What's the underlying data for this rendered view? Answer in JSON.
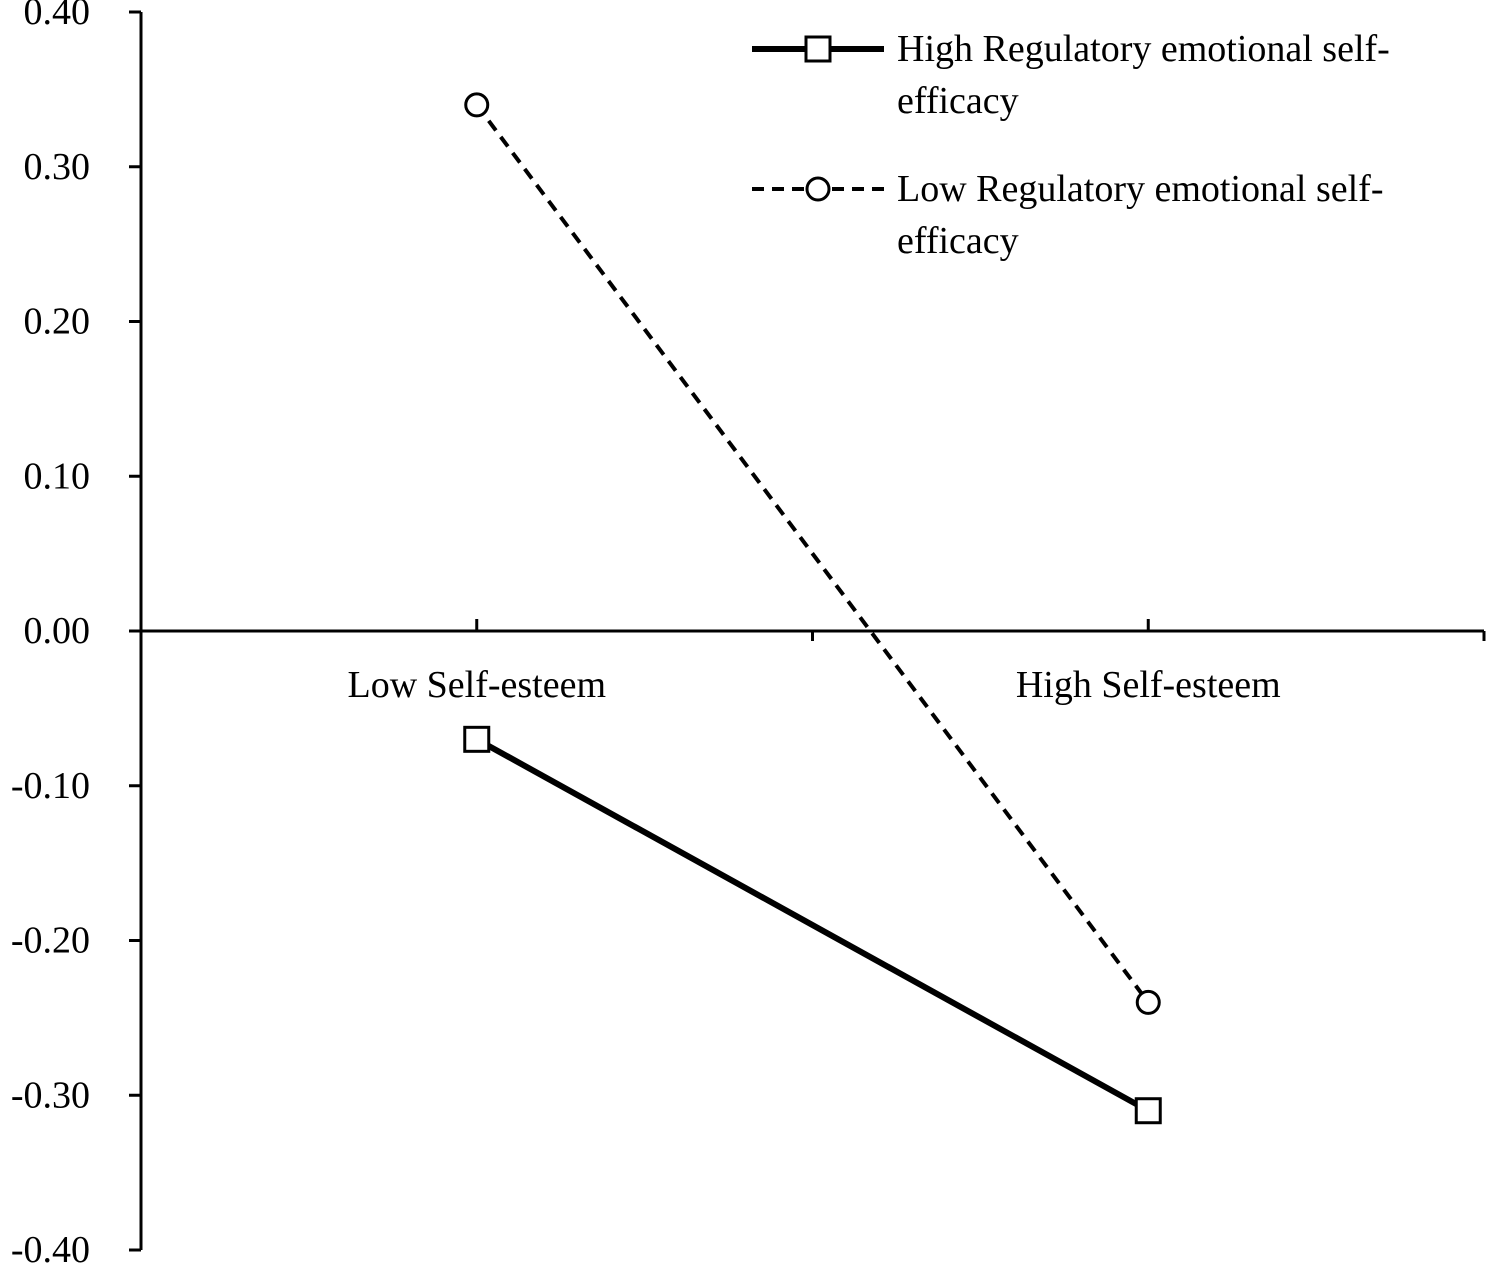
{
  "chart_data": {
    "type": "line",
    "categories": [
      "Low Self-esteem",
      "High Self-esteem"
    ],
    "ylim": [
      -0.4,
      0.4
    ],
    "yticks": [
      "0.40",
      "0.30",
      "0.20",
      "0.10",
      "0.00",
      "-0.10",
      "-0.20",
      "-0.30",
      "-0.40"
    ],
    "grid": false,
    "legend_position": "top-right",
    "series": [
      {
        "name_lines": [
          "High Regulatory emotional self-",
          "efficacy"
        ],
        "values": [
          -0.07,
          -0.31
        ],
        "marker": "square",
        "line_style": "solid",
        "color": "#000000"
      },
      {
        "name_lines": [
          "Low Regulatory emotional self-",
          "efficacy"
        ],
        "values": [
          0.34,
          -0.24
        ],
        "marker": "circle",
        "line_style": "dashed",
        "color": "#000000"
      }
    ]
  }
}
